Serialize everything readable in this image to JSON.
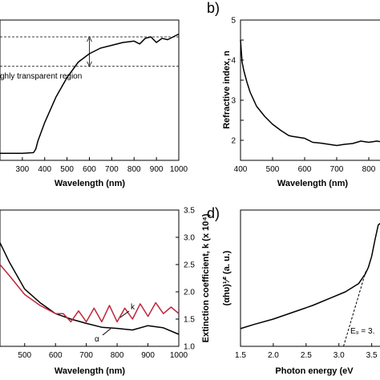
{
  "panels": {
    "b_letter": "b)",
    "d_letter": "d)"
  },
  "chart_data": [
    {
      "id": "a",
      "type": "line",
      "title": "",
      "xlabel": "Wavelength (nm)",
      "ylabel": "",
      "xlim": [
        200,
        1000
      ],
      "ylim": [
        0,
        100
      ],
      "x_ticks": [
        300,
        400,
        500,
        600,
        700,
        800,
        900,
        1000
      ],
      "grid": false,
      "annotation": "ghly transparent region",
      "band": [
        67,
        88
      ],
      "series": [
        {
          "color": "#000000",
          "x": [
            200,
            300,
            350,
            360,
            370,
            400,
            450,
            500,
            550,
            600,
            650,
            700,
            750,
            800,
            825,
            850,
            875,
            900,
            925,
            950,
            975,
            1000
          ],
          "y": [
            5,
            5,
            5.5,
            8,
            14,
            27,
            45,
            59,
            70,
            76,
            80,
            82,
            84,
            85,
            83,
            87,
            88,
            84,
            87,
            86,
            88,
            90
          ]
        }
      ]
    },
    {
      "id": "b",
      "type": "line",
      "title": "",
      "xlabel": "Wavelength (nm)",
      "ylabel": "Refractive index, n",
      "xlim": [
        400,
        850
      ],
      "ylim": [
        1.5,
        5
      ],
      "x_ticks": [
        400,
        500,
        600,
        700,
        800
      ],
      "y_ticks": [
        1.5,
        2.0,
        2.5,
        3.0,
        3.5,
        4.0,
        4.5,
        5.0
      ],
      "y_tick_labels": [
        "",
        "2",
        "",
        "3",
        "",
        "4",
        "",
        "5"
      ],
      "grid": false,
      "series": [
        {
          "color": "#000000",
          "x": [
            400,
            405,
            410,
            420,
            430,
            450,
            475,
            500,
            525,
            550,
            560,
            600,
            625,
            650,
            700,
            725,
            750,
            775,
            800,
            825,
            850
          ],
          "y": [
            4.5,
            3.95,
            3.75,
            3.45,
            3.2,
            2.85,
            2.6,
            2.4,
            2.25,
            2.12,
            2.1,
            2.05,
            1.95,
            1.93,
            1.87,
            1.9,
            1.92,
            1.98,
            1.95,
            1.98,
            1.95
          ]
        }
      ]
    },
    {
      "id": "c",
      "type": "line",
      "title": "",
      "xlabel": "Wavelength (nm)",
      "ylabel_right": "Extinction coefficient, k (x 10⁴)",
      "xlim": [
        420,
        1000
      ],
      "y2lim": [
        1.0,
        3.5
      ],
      "x_ticks": [
        500,
        600,
        700,
        800,
        900,
        1000
      ],
      "y2_ticks": [
        1.0,
        1.5,
        2.0,
        2.5,
        3.0,
        3.5
      ],
      "grid": false,
      "series": [
        {
          "name": "α",
          "color": "#000000",
          "x": [
            420,
            450,
            500,
            550,
            600,
            625,
            650,
            700,
            750,
            800,
            850,
            900,
            950,
            1000
          ],
          "y": [
            2.9,
            2.55,
            2.05,
            1.8,
            1.6,
            1.55,
            1.5,
            1.42,
            1.35,
            1.33,
            1.3,
            1.38,
            1.34,
            1.22
          ]
        },
        {
          "name": "k",
          "color": "#c0263b",
          "x": [
            420,
            450,
            500,
            550,
            600,
            625,
            650,
            675,
            700,
            725,
            750,
            775,
            800,
            825,
            850,
            875,
            900,
            925,
            950,
            975,
            1000
          ],
          "y": [
            2.5,
            2.3,
            1.95,
            1.75,
            1.6,
            1.6,
            1.45,
            1.65,
            1.45,
            1.7,
            1.45,
            1.75,
            1.45,
            1.7,
            1.5,
            1.78,
            1.55,
            1.8,
            1.6,
            1.72,
            1.6
          ]
        }
      ]
    },
    {
      "id": "d",
      "type": "line",
      "title": "",
      "xlabel": "Photon energy (eV",
      "ylabel": "(αhυ)¹⁄² (a. u.)",
      "xlim": [
        1.5,
        3.7
      ],
      "ylim": [
        0,
        10
      ],
      "x_ticks": [
        1.5,
        2.0,
        2.5,
        3.0,
        3.5
      ],
      "x_tick_labels": [
        "1.5",
        "2.0",
        "2.5",
        "3.0",
        "3.5"
      ],
      "grid": false,
      "annotation": "E₉ = 3.",
      "series": [
        {
          "color": "#000000",
          "style": "solid",
          "x": [
            1.5,
            1.7,
            2.0,
            2.3,
            2.6,
            2.9,
            3.1,
            3.3,
            3.4,
            3.45,
            3.5,
            3.55,
            3.6,
            3.65,
            3.7
          ],
          "y": [
            1.3,
            1.6,
            2.0,
            2.5,
            3.0,
            3.6,
            4.0,
            4.6,
            5.3,
            5.8,
            6.6,
            7.8,
            8.9,
            9.1,
            9.2
          ]
        },
        {
          "color": "#000000",
          "style": "dashed",
          "x": [
            3.07,
            3.41
          ],
          "y": [
            0,
            5.5
          ]
        }
      ]
    }
  ]
}
